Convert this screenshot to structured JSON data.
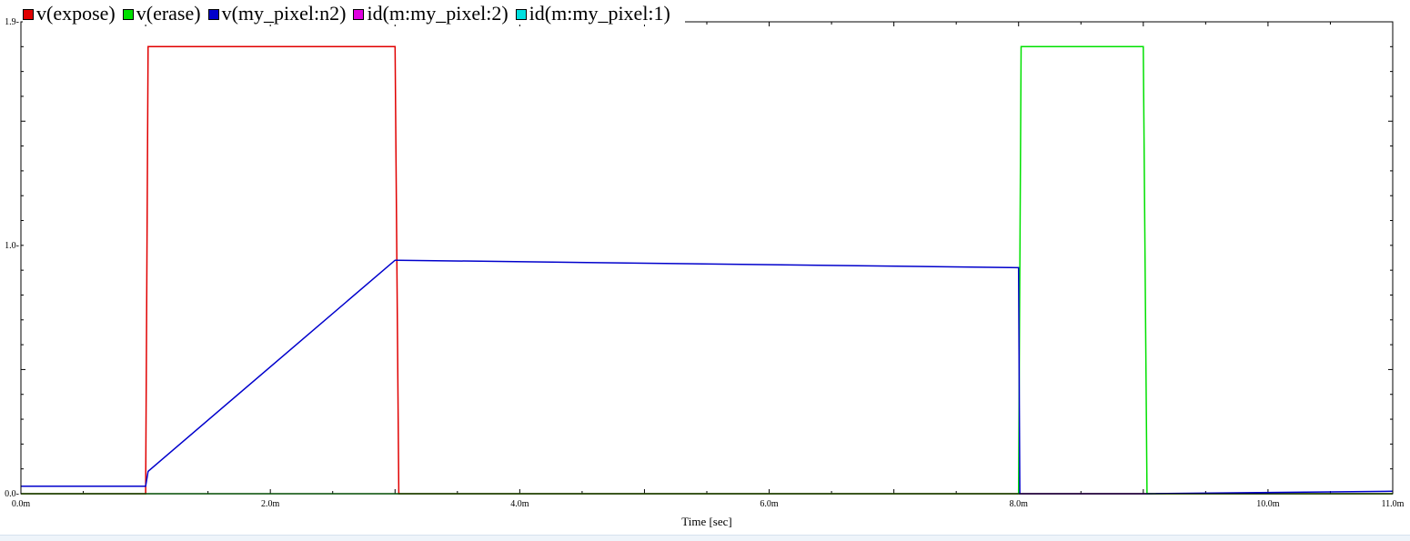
{
  "chart_data": {
    "type": "line",
    "title": "",
    "xlabel": "Time [sec]",
    "ylabel": "",
    "xlim": [
      0,
      11
    ],
    "ylim": [
      0,
      1.9
    ],
    "x_ticks": [
      {
        "value": 0,
        "label": "0.0m"
      },
      {
        "value": 2,
        "label": "2.0m"
      },
      {
        "value": 4,
        "label": "4.0m"
      },
      {
        "value": 6,
        "label": "6.0m"
      },
      {
        "value": 8,
        "label": "8.0m"
      },
      {
        "value": 10,
        "label": "10.0m"
      },
      {
        "value": 11,
        "label": "11.0m"
      }
    ],
    "y_ticks": [
      {
        "value": 0,
        "label": "0.0"
      },
      {
        "value": 1,
        "label": "1.0"
      },
      {
        "value": 1.9,
        "label": "1.9"
      }
    ],
    "grid": false,
    "legend_position": "top-left",
    "series": [
      {
        "name": "v(expose)",
        "color": "#e00000",
        "x": [
          0,
          1.0,
          1.02,
          3.0,
          3.03,
          11
        ],
        "y": [
          0,
          0,
          1.8,
          1.8,
          0,
          0
        ]
      },
      {
        "name": "v(erase)",
        "color": "#00e000",
        "x": [
          0,
          8.0,
          8.02,
          9.0,
          9.03,
          11
        ],
        "y": [
          0,
          0,
          1.8,
          1.8,
          0,
          0
        ]
      },
      {
        "name": "v(my_pixel:n2)",
        "color": "#0000cc",
        "x": [
          0,
          1.0,
          1.02,
          3.0,
          3.02,
          8.0,
          8.01,
          9.02,
          11
        ],
        "y": [
          0.03,
          0.03,
          0.09,
          0.94,
          0.94,
          0.91,
          0,
          0,
          0.01
        ]
      },
      {
        "name": "id(m:my_pixel:2)",
        "color": "#e000e0",
        "x": [],
        "y": []
      },
      {
        "name": "id(m:my_pixel:1)",
        "color": "#00e0e0",
        "x": [],
        "y": []
      }
    ]
  }
}
